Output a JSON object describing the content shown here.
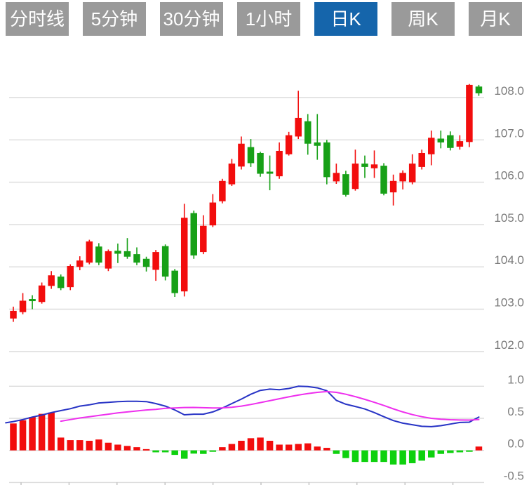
{
  "tabs": {
    "items": [
      {
        "label": "分时线",
        "active": false
      },
      {
        "label": "5分钟",
        "active": false
      },
      {
        "label": "30分钟",
        "active": false
      },
      {
        "label": "1小时",
        "active": false
      },
      {
        "label": "日K",
        "active": true
      },
      {
        "label": "周K",
        "active": false
      },
      {
        "label": "月K",
        "active": false
      }
    ]
  },
  "colors": {
    "tab_bg": "#9a9a9a",
    "tab_active_bg": "#1565ab",
    "tab_text": "#ffffff",
    "up": "#f20d0d",
    "down": "#17a017",
    "histo_up": "#f20d0d",
    "histo_down": "#0ed10e",
    "dif_line": "#2733c5",
    "dea_line": "#ee2fee",
    "grid": "#dcdcdc",
    "axis_text": "#7b7b7b",
    "background": "#ffffff"
  },
  "chart_data": {
    "type": "candlestick+macd",
    "title": "",
    "legend_position": "none",
    "grid": "on",
    "price_axis": {
      "side": "right",
      "ticks": [
        108.0,
        107.0,
        106.0,
        105.0,
        104.0,
        103.0,
        102.0
      ]
    },
    "macd_axis": {
      "side": "right",
      "ticks": [
        1.0,
        0.5,
        0.0,
        -0.5
      ]
    },
    "candles": [
      {
        "o": 102.78,
        "h": 103.06,
        "l": 102.7,
        "c": 102.96
      },
      {
        "o": 102.93,
        "h": 103.38,
        "l": 102.88,
        "c": 103.2
      },
      {
        "o": 103.24,
        "h": 103.33,
        "l": 103.0,
        "c": 103.19
      },
      {
        "o": 103.17,
        "h": 103.63,
        "l": 103.13,
        "c": 103.56
      },
      {
        "o": 103.55,
        "h": 103.9,
        "l": 103.48,
        "c": 103.8
      },
      {
        "o": 103.77,
        "h": 103.82,
        "l": 103.45,
        "c": 103.5
      },
      {
        "o": 103.52,
        "h": 104.06,
        "l": 103.45,
        "c": 104.02
      },
      {
        "o": 104.0,
        "h": 104.25,
        "l": 103.92,
        "c": 104.15
      },
      {
        "o": 104.1,
        "h": 104.64,
        "l": 104.06,
        "c": 104.6
      },
      {
        "o": 104.48,
        "h": 104.56,
        "l": 104.04,
        "c": 104.1
      },
      {
        "o": 103.96,
        "h": 104.41,
        "l": 103.9,
        "c": 104.37
      },
      {
        "o": 104.38,
        "h": 104.55,
        "l": 104.09,
        "c": 104.31
      },
      {
        "o": 104.37,
        "h": 104.68,
        "l": 104.19,
        "c": 104.24
      },
      {
        "o": 104.3,
        "h": 104.46,
        "l": 104.04,
        "c": 104.1
      },
      {
        "o": 104.19,
        "h": 104.24,
        "l": 103.89,
        "c": 104.0
      },
      {
        "o": 103.93,
        "h": 104.4,
        "l": 103.67,
        "c": 104.35
      },
      {
        "o": 104.49,
        "h": 104.53,
        "l": 103.68,
        "c": 103.77
      },
      {
        "o": 103.91,
        "h": 103.95,
        "l": 103.29,
        "c": 103.38
      },
      {
        "o": 103.42,
        "h": 105.49,
        "l": 103.3,
        "c": 105.16
      },
      {
        "o": 105.27,
        "h": 105.33,
        "l": 104.19,
        "c": 104.27
      },
      {
        "o": 104.35,
        "h": 105.22,
        "l": 104.3,
        "c": 104.97
      },
      {
        "o": 104.98,
        "h": 105.72,
        "l": 104.94,
        "c": 105.52
      },
      {
        "o": 105.55,
        "h": 106.08,
        "l": 105.5,
        "c": 106.03
      },
      {
        "o": 105.95,
        "h": 106.55,
        "l": 105.91,
        "c": 106.44
      },
      {
        "o": 106.37,
        "h": 107.08,
        "l": 106.3,
        "c": 106.91
      },
      {
        "o": 106.83,
        "h": 107.02,
        "l": 106.36,
        "c": 106.45
      },
      {
        "o": 106.69,
        "h": 106.72,
        "l": 106.13,
        "c": 106.2
      },
      {
        "o": 106.25,
        "h": 106.63,
        "l": 105.81,
        "c": 106.2
      },
      {
        "o": 106.14,
        "h": 106.94,
        "l": 106.08,
        "c": 106.74
      },
      {
        "o": 106.66,
        "h": 107.19,
        "l": 106.63,
        "c": 107.11
      },
      {
        "o": 107.08,
        "h": 108.16,
        "l": 107.02,
        "c": 107.52
      },
      {
        "o": 107.44,
        "h": 107.61,
        "l": 106.65,
        "c": 106.91
      },
      {
        "o": 106.94,
        "h": 107.61,
        "l": 106.53,
        "c": 106.86
      },
      {
        "o": 106.94,
        "h": 107.0,
        "l": 105.95,
        "c": 106.12
      },
      {
        "o": 106.02,
        "h": 106.44,
        "l": 105.96,
        "c": 106.22
      },
      {
        "o": 106.19,
        "h": 106.27,
        "l": 105.66,
        "c": 105.7
      },
      {
        "o": 105.84,
        "h": 106.77,
        "l": 105.8,
        "c": 106.44
      },
      {
        "o": 106.44,
        "h": 106.63,
        "l": 106.1,
        "c": 106.36
      },
      {
        "o": 106.33,
        "h": 106.75,
        "l": 106.1,
        "c": 106.42
      },
      {
        "o": 106.39,
        "h": 106.45,
        "l": 105.69,
        "c": 105.73
      },
      {
        "o": 105.76,
        "h": 106.18,
        "l": 105.45,
        "c": 106.03
      },
      {
        "o": 106.02,
        "h": 106.28,
        "l": 105.83,
        "c": 106.22
      },
      {
        "o": 106.0,
        "h": 106.66,
        "l": 105.95,
        "c": 106.44
      },
      {
        "o": 106.36,
        "h": 106.77,
        "l": 106.3,
        "c": 106.69
      },
      {
        "o": 106.66,
        "h": 107.22,
        "l": 106.4,
        "c": 107.05
      },
      {
        "o": 107.03,
        "h": 107.22,
        "l": 106.8,
        "c": 106.94
      },
      {
        "o": 107.11,
        "h": 107.2,
        "l": 106.75,
        "c": 106.81
      },
      {
        "o": 106.84,
        "h": 107.11,
        "l": 106.77,
        "c": 106.97
      },
      {
        "o": 106.95,
        "h": 108.32,
        "l": 106.83,
        "c": 108.3
      },
      {
        "o": 108.26,
        "h": 108.3,
        "l": 108.04,
        "c": 108.1
      }
    ],
    "macd_histogram": [
      0.42,
      0.47,
      0.52,
      0.57,
      0.59,
      0.2,
      0.16,
      0.16,
      0.15,
      0.17,
      0.12,
      0.09,
      0.07,
      0.05,
      0.02,
      -0.03,
      -0.03,
      -0.07,
      -0.13,
      -0.05,
      -0.055,
      -0.02,
      0.05,
      0.1,
      0.15,
      0.19,
      0.2,
      0.15,
      0.09,
      0.09,
      0.1,
      0.11,
      0.06,
      0.04,
      -0.055,
      -0.12,
      -0.18,
      -0.18,
      -0.18,
      -0.18,
      -0.22,
      -0.22,
      -0.2,
      -0.16,
      -0.11,
      -0.055,
      -0.04,
      -0.03,
      -0.02,
      0.06
    ],
    "dif": [
      [
        -0.8,
        0.43
      ],
      [
        0,
        0.45
      ],
      [
        1,
        0.48
      ],
      [
        2,
        0.52
      ],
      [
        3,
        0.55
      ],
      [
        4,
        0.59
      ],
      [
        5,
        0.62
      ],
      [
        6,
        0.65
      ],
      [
        7,
        0.69
      ],
      [
        8,
        0.71
      ],
      [
        9,
        0.74
      ],
      [
        10,
        0.75
      ],
      [
        11,
        0.76
      ],
      [
        12,
        0.765
      ],
      [
        13,
        0.765
      ],
      [
        14,
        0.76
      ],
      [
        15,
        0.73
      ],
      [
        16,
        0.69
      ],
      [
        17,
        0.63
      ],
      [
        18,
        0.555
      ],
      [
        19,
        0.565
      ],
      [
        20,
        0.565
      ],
      [
        21,
        0.6
      ],
      [
        22,
        0.66
      ],
      [
        23,
        0.73
      ],
      [
        24,
        0.8
      ],
      [
        25,
        0.875
      ],
      [
        26,
        0.935
      ],
      [
        27,
        0.955
      ],
      [
        28,
        0.945
      ],
      [
        29,
        0.965
      ],
      [
        30,
        1.0
      ],
      [
        31,
        0.995
      ],
      [
        32,
        0.975
      ],
      [
        33,
        0.93
      ],
      [
        34,
        0.78
      ],
      [
        35,
        0.72
      ],
      [
        36,
        0.685
      ],
      [
        37,
        0.645
      ],
      [
        38,
        0.59
      ],
      [
        39,
        0.525
      ],
      [
        40,
        0.465
      ],
      [
        41,
        0.425
      ],
      [
        42,
        0.4
      ],
      [
        43,
        0.375
      ],
      [
        44,
        0.37
      ],
      [
        45,
        0.385
      ],
      [
        46,
        0.41
      ],
      [
        47,
        0.435
      ],
      [
        48,
        0.44
      ],
      [
        49,
        0.52
      ]
    ],
    "dea": [
      [
        5,
        0.455
      ],
      [
        6,
        0.48
      ],
      [
        7,
        0.505
      ],
      [
        8,
        0.525
      ],
      [
        9,
        0.545
      ],
      [
        10,
        0.565
      ],
      [
        11,
        0.585
      ],
      [
        12,
        0.6
      ],
      [
        13,
        0.615
      ],
      [
        14,
        0.63
      ],
      [
        15,
        0.64
      ],
      [
        16,
        0.655
      ],
      [
        17,
        0.662
      ],
      [
        18,
        0.668
      ],
      [
        19,
        0.67
      ],
      [
        20,
        0.665
      ],
      [
        21,
        0.662
      ],
      [
        22,
        0.663
      ],
      [
        23,
        0.672
      ],
      [
        24,
        0.69
      ],
      [
        25,
        0.715
      ],
      [
        26,
        0.745
      ],
      [
        27,
        0.775
      ],
      [
        28,
        0.805
      ],
      [
        29,
        0.835
      ],
      [
        30,
        0.862
      ],
      [
        31,
        0.885
      ],
      [
        32,
        0.905
      ],
      [
        33,
        0.917
      ],
      [
        34,
        0.905
      ],
      [
        35,
        0.875
      ],
      [
        36,
        0.838
      ],
      [
        37,
        0.795
      ],
      [
        38,
        0.75
      ],
      [
        39,
        0.7
      ],
      [
        40,
        0.648
      ],
      [
        41,
        0.6
      ],
      [
        42,
        0.558
      ],
      [
        43,
        0.525
      ],
      [
        44,
        0.5
      ],
      [
        45,
        0.487
      ],
      [
        46,
        0.478
      ],
      [
        47,
        0.474
      ],
      [
        48,
        0.473
      ],
      [
        49,
        0.48
      ]
    ]
  }
}
